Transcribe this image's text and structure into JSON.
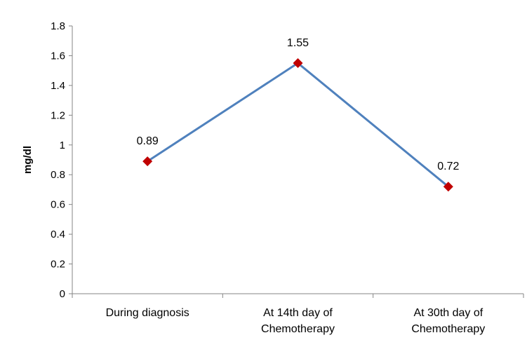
{
  "chart_data": {
    "type": "line",
    "categories": [
      [
        "During diagnosis"
      ],
      [
        "At 14th day of",
        "Chemotherapy"
      ],
      [
        "At 30th day of",
        "Chemotherapy"
      ]
    ],
    "series": [
      {
        "values": [
          0.89,
          1.55,
          0.72
        ],
        "color": "#4f81bd",
        "marker_color": "#c00000",
        "marker": "diamond"
      }
    ],
    "data_labels": [
      "0.89",
      "1.55",
      "0.72"
    ],
    "ylabel": "mg/dl",
    "ylim": [
      0,
      1.8
    ],
    "yticks": [
      "0",
      "0.2",
      "0.4",
      "0.6",
      "0.8",
      "1",
      "1.2",
      "1.4",
      "1.6",
      "1.8"
    ],
    "grid": false,
    "legend": "none"
  }
}
